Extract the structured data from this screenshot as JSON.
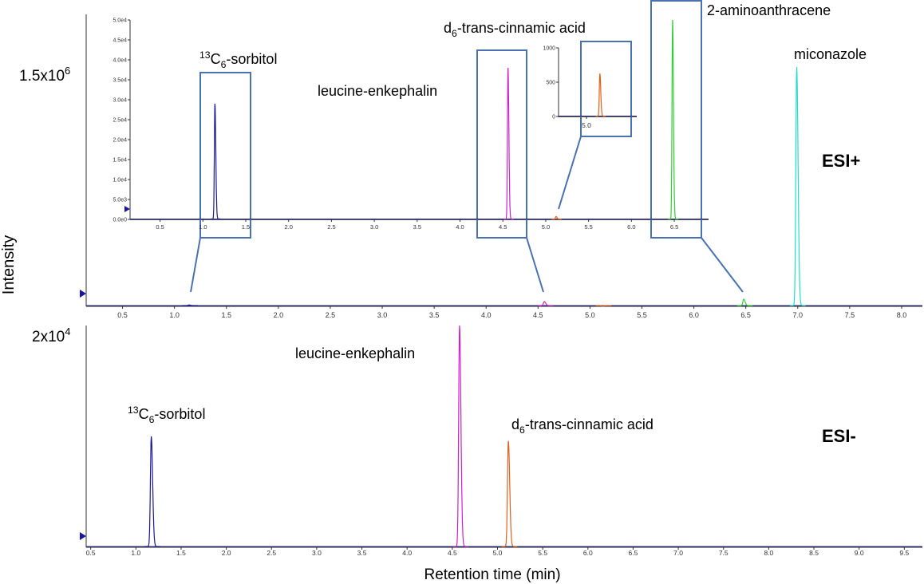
{
  "figure": {
    "y_axis_label": "Intensity",
    "x_axis_label": "Retention time (min)"
  },
  "chart_data": [
    {
      "id": "esi-pos",
      "type": "line",
      "mode_label": "ESI+",
      "scale_label_prefix": "1.5x10",
      "scale_label_exp": "6",
      "xlim": [
        0.15,
        8.2
      ],
      "x_ticks": [
        "0.5",
        "1.0",
        "1.5",
        "2.0",
        "2.5",
        "3.0",
        "3.5",
        "4.0",
        "4.5",
        "5.0",
        "5.5",
        "6.0",
        "6.5",
        "7.0",
        "7.5",
        "8.0"
      ],
      "colors": {
        "sorbitol": "#1a1a99",
        "enkephalin": "#cc22cc",
        "cinnamic": "#e06020",
        "aminoanthracene": "#33cc33",
        "miconazole": "#22ddcc"
      },
      "peaks": [
        {
          "key": "sorbitol",
          "rt": 1.14,
          "height": 0.006
        },
        {
          "key": "enkephalin",
          "rt": 4.56,
          "height": 0.02
        },
        {
          "key": "cinnamic",
          "rt": 5.12,
          "height": 0.001
        },
        {
          "key": "aminoanthracene",
          "rt": 6.48,
          "height": 0.03
        },
        {
          "key": "miconazole",
          "rt": 6.99,
          "height": 1.0
        }
      ],
      "annotations": [
        {
          "key": "sorbitol",
          "pre": "",
          "sup": "13",
          "main": "C",
          "sub": "6",
          "post": "-sorbitol"
        },
        {
          "key": "enkephalin",
          "pre": "leucine-enkephalin",
          "sup": "",
          "main": "",
          "sub": "",
          "post": ""
        },
        {
          "key": "cinnamic",
          "pre": "d",
          "sup": "",
          "main": "",
          "sub": "6",
          "post": "-trans-cinnamic acid"
        },
        {
          "key": "aminoanthracene",
          "pre": "2-aminoanthracene",
          "sup": "",
          "main": "",
          "sub": "",
          "post": ""
        },
        {
          "key": "miconazole",
          "pre": "miconazole",
          "sup": "",
          "main": "",
          "sub": "",
          "post": ""
        }
      ]
    },
    {
      "id": "esi-pos-inset",
      "type": "line",
      "xlim": [
        0.15,
        6.9
      ],
      "ylim": [
        0,
        50000
      ],
      "x_ticks": [
        "0.5",
        "1.0",
        "1.5",
        "2.0",
        "2.5",
        "3.0",
        "3.5",
        "4.0",
        "4.5",
        "5.0",
        "5.5",
        "6.0",
        "6.5"
      ],
      "y_ticks": [
        "0.0e0",
        "5.0e3",
        "1.0e4",
        "1.5e4",
        "2.0e4",
        "2.5e4",
        "3.0e4",
        "3.5e4",
        "4.0e4",
        "4.5e4",
        "5.0e4"
      ],
      "peaks": [
        {
          "key": "sorbitol",
          "rt": 1.14,
          "value": 29000
        },
        {
          "key": "enkephalin",
          "rt": 4.56,
          "value": 38000
        },
        {
          "key": "cinnamic",
          "rt": 5.12,
          "value": 750
        },
        {
          "key": "aminoanthracene",
          "rt": 6.48,
          "value": 50000
        }
      ]
    },
    {
      "id": "esi-pos-inset-zoom",
      "type": "line",
      "xlim": [
        4.75,
        5.45
      ],
      "ylim": [
        0,
        1200
      ],
      "x_ticks": [
        "5.0"
      ],
      "y_ticks": [
        "0",
        "500",
        "1000"
      ],
      "peaks": [
        {
          "key": "cinnamic",
          "rt": 5.12,
          "value": 750
        }
      ]
    },
    {
      "id": "esi-neg",
      "type": "line",
      "mode_label": "ESI-",
      "scale_label_prefix": "2x10",
      "scale_label_exp": "4",
      "xlim": [
        0.45,
        9.7
      ],
      "x_ticks": [
        "0.5",
        "1.0",
        "1.5",
        "2.0",
        "2.5",
        "3.0",
        "3.5",
        "4.0",
        "4.5",
        "5.0",
        "5.5",
        "6.0",
        "6.5",
        "7.0",
        "7.5",
        "8.0",
        "8.5",
        "9.0",
        "9.5"
      ],
      "peaks": [
        {
          "key": "sorbitol",
          "rt": 1.17,
          "height": 0.5
        },
        {
          "key": "enkephalin",
          "rt": 4.58,
          "height": 1.0
        },
        {
          "key": "cinnamic",
          "rt": 5.12,
          "height": 0.48
        }
      ],
      "annotations": [
        {
          "key": "sorbitol",
          "pre": "",
          "sup": "13",
          "main": "C",
          "sub": "6",
          "post": "-sorbitol"
        },
        {
          "key": "enkephalin",
          "pre": "leucine-enkephalin",
          "sup": "",
          "main": "",
          "sub": "",
          "post": ""
        },
        {
          "key": "cinnamic",
          "pre": "d",
          "sup": "",
          "main": "",
          "sub": "6",
          "post": "-trans-cinnamic acid"
        }
      ]
    }
  ]
}
